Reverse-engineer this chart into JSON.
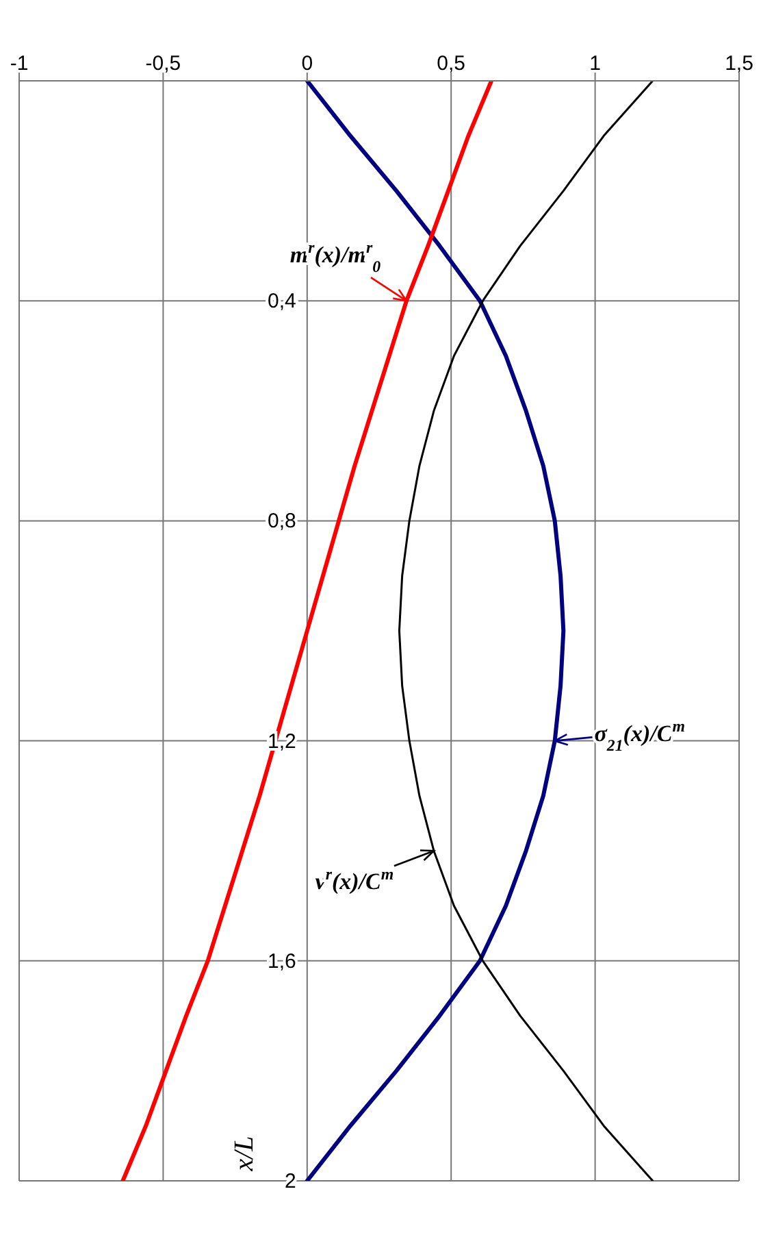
{
  "chart_data": {
    "type": "line",
    "ylabel": "x/L",
    "ylim": [
      2,
      0
    ],
    "yticks": [
      {
        "value": 0,
        "label": null
      },
      {
        "value": 0.4,
        "label": "0,4"
      },
      {
        "value": 0.8,
        "label": "0,8"
      },
      {
        "value": 1.2,
        "label": "1,2"
      },
      {
        "value": 1.6,
        "label": "1,6"
      },
      2
    ],
    "xlim": [
      -1,
      1.5
    ],
    "xticks": [
      -1,
      {
        "value": -0.5,
        "label": "-0,5"
      },
      0,
      {
        "value": 0.5,
        "label": "0,5"
      },
      1,
      {
        "value": 1.5,
        "label": "1,5"
      }
    ],
    "grid": true,
    "marker": "none",
    "line_style": "solid",
    "series": [
      {
        "name": "σ$_{21}$(x)/C$^{m}$",
        "color": "#000080",
        "x": [
          0,
          0.15,
          0.31,
          0.46,
          0.6,
          0.69,
          0.76,
          0.82,
          0.86,
          0.88,
          0.89,
          0.88,
          0.86,
          0.82,
          0.76,
          0.69,
          0.6,
          0.46,
          0.31,
          0.15,
          0
        ],
        "values": [
          0,
          0.1,
          0.2,
          0.3,
          0.4,
          0.5,
          0.6,
          0.7,
          0.8,
          0.9,
          1,
          1.1,
          1.2,
          1.3,
          1.4,
          1.5,
          1.6,
          1.7,
          1.8,
          1.9,
          2
        ]
      },
      {
        "name": "ν$^{r}$(x)/C$^{m}$",
        "color": "#000000",
        "x": [
          1.2,
          1.03,
          0.89,
          0.74,
          0.61,
          0.51,
          0.44,
          0.39,
          0.355,
          0.33,
          0.32,
          0.33,
          0.355,
          0.39,
          0.44,
          0.51,
          0.61,
          0.74,
          0.89,
          1.03,
          1.2
        ],
        "values": [
          0,
          0.1,
          0.2,
          0.3,
          0.4,
          0.5,
          0.6,
          0.7,
          0.8,
          0.9,
          1,
          1.1,
          1.2,
          1.3,
          1.4,
          1.5,
          1.6,
          1.7,
          1.8,
          1.9,
          2
        ]
      },
      {
        "name": "m$^{r}$(x)/m$^{r}$$_{0}$",
        "color": "#ff0000",
        "x": [
          0.64,
          0.56,
          0.49,
          0.42,
          0.345,
          0.285,
          0.225,
          0.165,
          0.11,
          0.055,
          0,
          -0.055,
          -0.11,
          -0.165,
          -0.225,
          -0.285,
          -0.345,
          -0.42,
          -0.49,
          -0.56,
          -0.64
        ],
        "values": [
          0,
          0.1,
          0.2,
          0.3,
          0.4,
          0.5,
          0.6,
          0.7,
          0.8,
          0.9,
          1,
          1.1,
          1.2,
          1.3,
          1.4,
          1.5,
          1.6,
          1.7,
          1.8,
          1.9,
          2
        ]
      }
    ]
  }
}
